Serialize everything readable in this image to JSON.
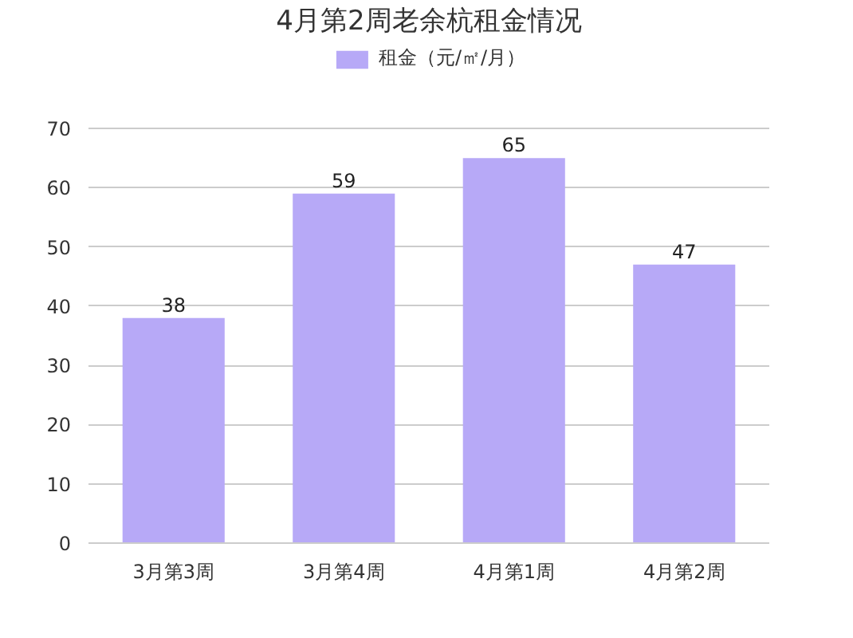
{
  "chart_data": {
    "type": "bar",
    "title": "4月第2周老余杭租金情况",
    "categories": [
      "3月第3周",
      "3月第4周",
      "4月第1周",
      "4月第2周"
    ],
    "series": [
      {
        "name": "租金（元/㎡/月）",
        "color": "#b7a9f7",
        "values": [
          38,
          59,
          65,
          47
        ]
      }
    ],
    "ylim": [
      0,
      70
    ],
    "yticks": [
      0,
      10,
      20,
      30,
      40,
      50,
      60,
      70
    ],
    "grid": "y",
    "legend": "top",
    "data_labels": true
  }
}
